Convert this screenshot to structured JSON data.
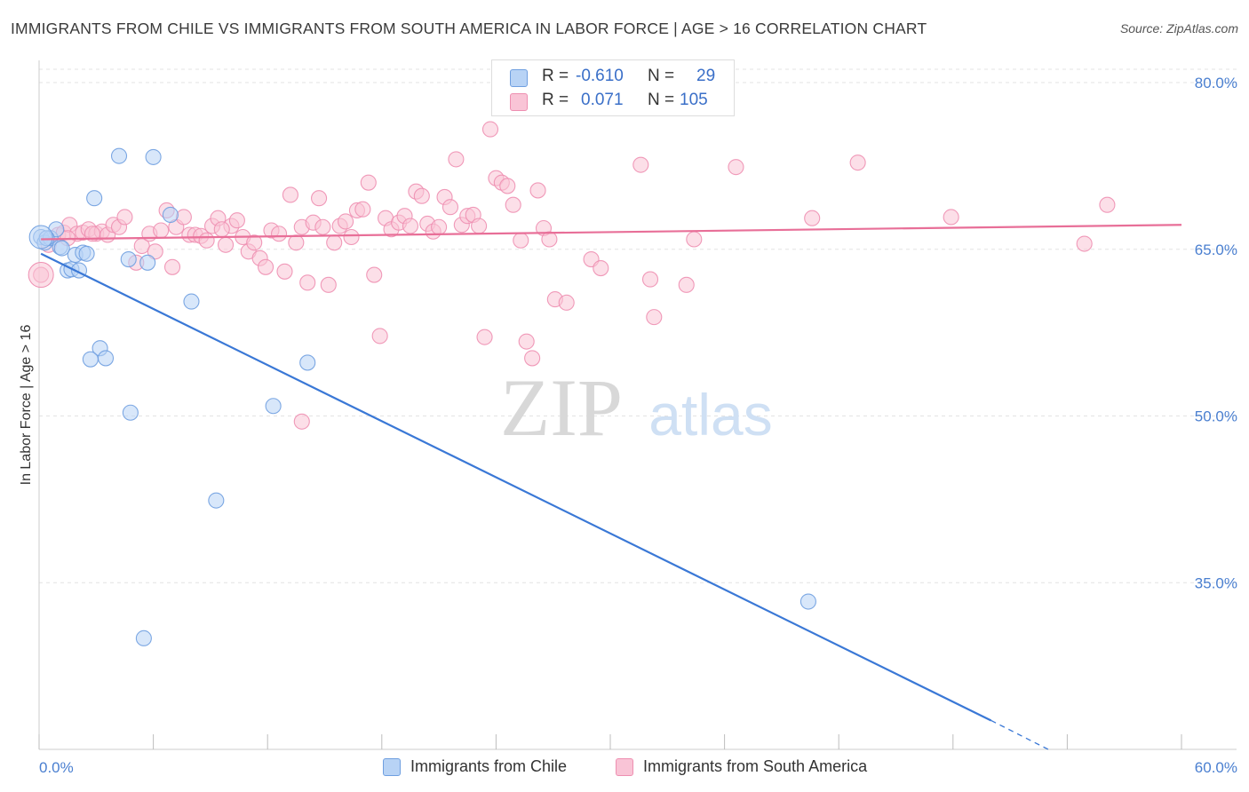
{
  "header": {
    "title": "IMMIGRANTS FROM CHILE VS IMMIGRANTS FROM SOUTH AMERICA IN LABOR FORCE | AGE > 16 CORRELATION CHART",
    "source": "Source: ZipAtlas.com"
  },
  "watermark": {
    "zip": "ZIP",
    "atlas": "atlas"
  },
  "legend": {
    "rows": [
      {
        "r_label": "R =",
        "r_value": "-0.610",
        "n_label": "N =",
        "n_value": "29",
        "color": "#b8d3f5",
        "stroke": "#6f9fe0"
      },
      {
        "r_label": "R =",
        "r_value": "0.071",
        "n_label": "N =",
        "n_value": "105",
        "color": "#f9c4d6",
        "stroke": "#ee8fb1"
      }
    ]
  },
  "bottom_legend": [
    {
      "label": "Immigrants from Chile",
      "color": "#b8d3f5",
      "stroke": "#6f9fe0"
    },
    {
      "label": "Immigrants from South America",
      "color": "#f9c4d6",
      "stroke": "#ee8fb1"
    }
  ],
  "chart_data": {
    "type": "scatter",
    "title": "IMMIGRANTS FROM CHILE VS IMMIGRANTS FROM SOUTH AMERICA IN LABOR FORCE | AGE > 16 CORRELATION CHART",
    "xlabel": "",
    "ylabel": "In Labor Force | Age > 16",
    "xlim": [
      0,
      60
    ],
    "ylim": [
      20,
      82
    ],
    "x_tick_labels": [
      "0.0%",
      "60.0%"
    ],
    "y_ticks": [
      35,
      50,
      65,
      80
    ],
    "y_tick_labels": [
      "35.0%",
      "50.0%",
      "65.0%",
      "80.0%"
    ],
    "grid": true,
    "legend_position": "top-center",
    "series": [
      {
        "name": "Immigrants from Chile",
        "color": "#6f9fe0",
        "fill": "#b8d3f5",
        "trend": {
          "x": [
            0.1,
            50.0
          ],
          "y": [
            64.6,
            22.6
          ],
          "dashed_to": [
            53.0,
            20.0
          ]
        },
        "points": [
          [
            0.1,
            66.1
          ],
          [
            0.3,
            65.6
          ],
          [
            0.6,
            66.0
          ],
          [
            0.9,
            66.8
          ],
          [
            1.1,
            65.2
          ],
          [
            1.2,
            65.1
          ],
          [
            1.5,
            63.1
          ],
          [
            1.7,
            63.2
          ],
          [
            1.9,
            64.5
          ],
          [
            2.1,
            63.1
          ],
          [
            2.3,
            64.7
          ],
          [
            2.5,
            64.6
          ],
          [
            2.9,
            69.6
          ],
          [
            3.2,
            56.1
          ],
          [
            3.5,
            55.2
          ],
          [
            2.7,
            55.1
          ],
          [
            4.2,
            73.4
          ],
          [
            4.7,
            64.1
          ],
          [
            4.8,
            50.3
          ],
          [
            5.5,
            30.0
          ],
          [
            5.7,
            63.8
          ],
          [
            6.0,
            73.3
          ],
          [
            6.9,
            68.1
          ],
          [
            8.0,
            60.3
          ],
          [
            9.3,
            42.4
          ],
          [
            12.3,
            50.9
          ],
          [
            14.1,
            54.8
          ],
          [
            40.4,
            33.3
          ],
          [
            0.4,
            66.0
          ]
        ]
      },
      {
        "name": "Immigrants from South America",
        "color": "#ee8fb1",
        "fill": "#f9c4d6",
        "trend": {
          "x": [
            0.1,
            60.0
          ],
          "y": [
            65.9,
            67.2
          ]
        },
        "points": [
          [
            0.1,
            62.7
          ],
          [
            0.5,
            65.4
          ],
          [
            1.0,
            66.3
          ],
          [
            1.3,
            66.5
          ],
          [
            1.6,
            67.2
          ],
          [
            2.0,
            66.4
          ],
          [
            2.3,
            66.5
          ],
          [
            2.6,
            66.8
          ],
          [
            3.0,
            66.4
          ],
          [
            3.3,
            66.6
          ],
          [
            3.6,
            66.3
          ],
          [
            3.9,
            67.2
          ],
          [
            4.2,
            67.0
          ],
          [
            4.5,
            67.9
          ],
          [
            5.1,
            63.8
          ],
          [
            5.4,
            65.3
          ],
          [
            5.8,
            66.4
          ],
          [
            6.1,
            64.8
          ],
          [
            6.4,
            66.7
          ],
          [
            6.7,
            68.5
          ],
          [
            7.0,
            63.4
          ],
          [
            7.2,
            67.0
          ],
          [
            7.6,
            67.9
          ],
          [
            7.9,
            66.3
          ],
          [
            8.2,
            66.3
          ],
          [
            8.5,
            66.2
          ],
          [
            8.8,
            65.8
          ],
          [
            9.1,
            67.1
          ],
          [
            9.4,
            67.8
          ],
          [
            9.8,
            65.4
          ],
          [
            10.1,
            67.1
          ],
          [
            10.4,
            67.6
          ],
          [
            10.7,
            66.1
          ],
          [
            11.0,
            64.8
          ],
          [
            11.3,
            65.6
          ],
          [
            11.6,
            64.2
          ],
          [
            11.9,
            63.4
          ],
          [
            12.2,
            66.7
          ],
          [
            12.6,
            66.4
          ],
          [
            12.9,
            63.0
          ],
          [
            13.2,
            69.9
          ],
          [
            13.5,
            65.6
          ],
          [
            13.8,
            67.0
          ],
          [
            14.1,
            62.0
          ],
          [
            14.4,
            67.4
          ],
          [
            14.7,
            69.6
          ],
          [
            14.9,
            67.0
          ],
          [
            15.2,
            61.8
          ],
          [
            15.5,
            65.6
          ],
          [
            15.8,
            67.1
          ],
          [
            16.1,
            67.5
          ],
          [
            16.4,
            66.1
          ],
          [
            16.7,
            68.5
          ],
          [
            17.0,
            68.6
          ],
          [
            17.3,
            71.0
          ],
          [
            17.6,
            62.7
          ],
          [
            17.9,
            57.2
          ],
          [
            18.2,
            67.8
          ],
          [
            18.5,
            66.8
          ],
          [
            18.9,
            67.4
          ],
          [
            19.2,
            68.0
          ],
          [
            19.5,
            67.1
          ],
          [
            19.8,
            70.2
          ],
          [
            20.1,
            69.8
          ],
          [
            20.4,
            67.3
          ],
          [
            20.7,
            66.6
          ],
          [
            21.0,
            67.0
          ],
          [
            21.3,
            69.7
          ],
          [
            21.6,
            68.8
          ],
          [
            21.9,
            73.1
          ],
          [
            22.2,
            67.2
          ],
          [
            22.5,
            68.0
          ],
          [
            22.8,
            68.1
          ],
          [
            23.1,
            67.1
          ],
          [
            23.4,
            57.1
          ],
          [
            23.7,
            75.8
          ],
          [
            24.0,
            71.4
          ],
          [
            24.3,
            71.0
          ],
          [
            24.6,
            70.7
          ],
          [
            24.9,
            69.0
          ],
          [
            25.3,
            65.8
          ],
          [
            25.6,
            56.7
          ],
          [
            25.9,
            55.2
          ],
          [
            26.2,
            70.3
          ],
          [
            26.5,
            66.9
          ],
          [
            26.8,
            65.9
          ],
          [
            27.1,
            60.5
          ],
          [
            27.7,
            60.2
          ],
          [
            29.0,
            64.1
          ],
          [
            29.5,
            63.3
          ],
          [
            31.6,
            72.6
          ],
          [
            32.1,
            62.3
          ],
          [
            32.3,
            58.9
          ],
          [
            34.0,
            61.8
          ],
          [
            34.4,
            65.9
          ],
          [
            36.6,
            72.4
          ],
          [
            40.6,
            67.8
          ],
          [
            13.8,
            49.5
          ],
          [
            1.5,
            66.0
          ],
          [
            2.8,
            66.4
          ],
          [
            43.0,
            72.8
          ],
          [
            47.9,
            67.9
          ],
          [
            54.9,
            65.5
          ],
          [
            56.1,
            69.0
          ],
          [
            9.6,
            66.8
          ]
        ]
      }
    ]
  }
}
